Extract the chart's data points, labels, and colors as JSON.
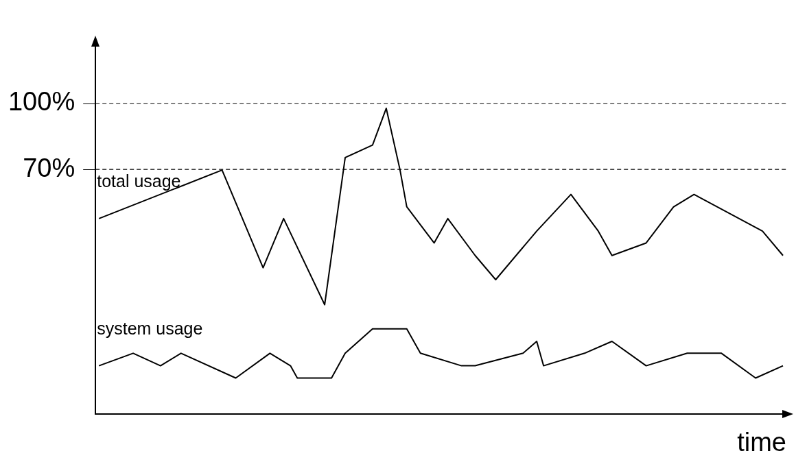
{
  "chart_data": {
    "type": "line",
    "xlabel": "time",
    "ylim": [
      -41.5,
      128.4
    ],
    "yticks": [
      {
        "value": 70,
        "label": "70%"
      },
      {
        "value": 100,
        "label": "100%"
      }
    ],
    "tick_labels": "y",
    "marker": "none",
    "line_style": "solid",
    "categories": [
      null,
      null,
      null,
      null,
      null,
      null,
      null,
      null,
      null,
      null,
      null,
      null,
      null,
      null,
      null,
      null,
      null,
      null,
      null,
      null,
      null,
      null,
      null,
      null,
      null,
      null,
      null,
      null,
      null,
      null,
      null,
      null,
      null,
      null,
      null,
      null,
      null,
      null,
      null,
      null,
      null,
      null,
      null,
      null,
      null,
      null,
      null,
      null,
      null,
      null,
      null,
      null,
      null,
      null,
      null,
      null,
      null,
      null,
      null,
      null,
      null,
      null,
      null,
      null,
      null,
      null,
      null,
      null,
      null,
      null,
      null,
      null,
      null,
      null,
      null,
      null,
      null,
      null,
      null,
      null,
      null,
      null,
      null,
      null,
      null,
      null,
      null,
      null,
      null,
      null,
      null,
      null,
      null,
      null,
      null,
      null,
      null,
      null,
      null,
      null,
      null
    ],
    "ref_lines": [
      {
        "axis": "y",
        "value": 100,
        "line_style": "dashed",
        "color": "#000000"
      },
      {
        "axis": "y",
        "value": 70,
        "line_style": "dashed",
        "color": "#000000"
      }
    ],
    "series": [
      {
        "name": "total usage",
        "color": "#000000",
        "values": [
          47.6,
          null,
          null,
          null,
          null,
          null,
          null,
          null,
          null,
          null,
          null,
          null,
          null,
          null,
          null,
          null,
          null,
          null,
          69.7,
          null,
          null,
          null,
          null,
          null,
          25.2,
          null,
          null,
          47.6,
          null,
          null,
          null,
          null,
          null,
          8.4,
          null,
          null,
          75.4,
          null,
          null,
          null,
          81.1,
          null,
          97.8,
          null,
          70,
          53,
          null,
          null,
          null,
          36.5,
          null,
          47.6,
          null,
          null,
          null,
          30.8,
          null,
          null,
          19.8,
          null,
          null,
          null,
          null,
          null,
          41.9,
          null,
          null,
          null,
          null,
          58.6,
          null,
          null,
          null,
          41.9,
          null,
          30.8,
          null,
          null,
          null,
          null,
          36.5,
          null,
          null,
          null,
          52.9,
          null,
          null,
          58.6,
          null,
          null,
          null,
          null,
          null,
          null,
          null,
          null,
          null,
          41.9,
          null,
          null,
          30.8
        ]
      },
      {
        "name": "system usage",
        "color": "#000000",
        "values": [
          -19.4,
          null,
          null,
          null,
          null,
          -13.7,
          null,
          null,
          null,
          -19.4,
          null,
          null,
          -13.7,
          null,
          null,
          null,
          null,
          null,
          null,
          null,
          -25,
          null,
          null,
          null,
          null,
          -13.7,
          null,
          null,
          -19.4,
          -25,
          null,
          null,
          null,
          null,
          -25,
          null,
          -13.7,
          null,
          null,
          null,
          -2.6,
          null,
          null,
          null,
          null,
          -2.6,
          null,
          -13.7,
          null,
          null,
          null,
          null,
          null,
          -19.4,
          null,
          -19.4,
          null,
          null,
          null,
          null,
          null,
          null,
          -13.7,
          null,
          -8.3,
          -19.4,
          null,
          null,
          null,
          null,
          null,
          -13.7,
          null,
          null,
          null,
          -8.3,
          null,
          null,
          null,
          null,
          -19.4,
          null,
          null,
          null,
          null,
          null,
          -13.7,
          null,
          null,
          null,
          null,
          -13.7,
          null,
          null,
          null,
          null,
          -25,
          null,
          null,
          null,
          -19.4
        ]
      }
    ]
  }
}
